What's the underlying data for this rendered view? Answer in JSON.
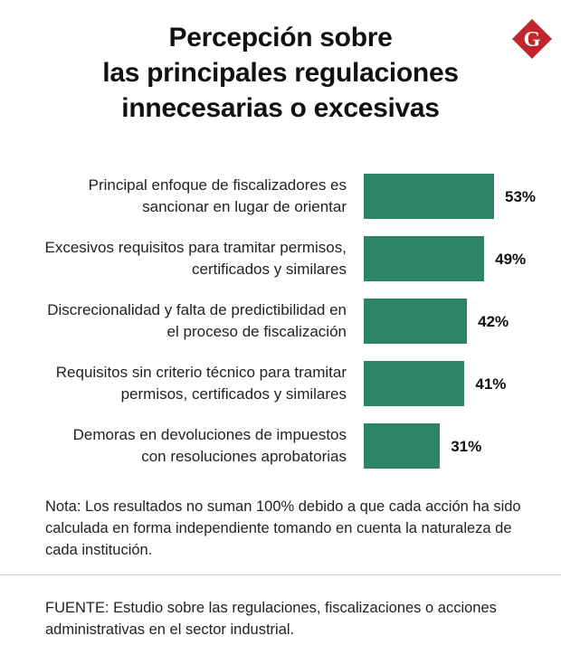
{
  "header": {
    "title_lines": [
      "Percepción sobre",
      "las principales regulaciones",
      "innecesarias o excesivas"
    ]
  },
  "logo": {
    "letter": "G",
    "color": "#c0272d"
  },
  "chart_data": {
    "type": "bar",
    "orientation": "horizontal",
    "categories": [
      [
        "Principal enfoque de fiscalizadores es",
        "sancionar en lugar de orientar"
      ],
      [
        "Excesivos requisitos para tramitar permisos,",
        "certificados y similares"
      ],
      [
        "Discrecionalidad y falta de predictibilidad en",
        "el proceso de fiscalización"
      ],
      [
        "Requisitos sin criterio técnico para tramitar",
        "permisos, certificados y similares"
      ],
      [
        "Demoras en devoluciones de impuestos",
        "con resoluciones aprobatorias"
      ]
    ],
    "values": [
      53,
      49,
      42,
      41,
      31
    ],
    "value_labels": [
      "53%",
      "49%",
      "42%",
      "41%",
      "31%"
    ],
    "unit": "%",
    "bar_color": "#2e8467",
    "xlim": [
      0,
      100
    ]
  },
  "footer": {
    "note": "Nota: Los resultados no suman 100% debido a que cada acción ha sido calculada en forma independiente tomando en cuenta la naturaleza de cada institución.",
    "source": "FUENTE: Estudio sobre las regulaciones, fiscalizaciones o acciones administrativas en el sector industrial."
  }
}
